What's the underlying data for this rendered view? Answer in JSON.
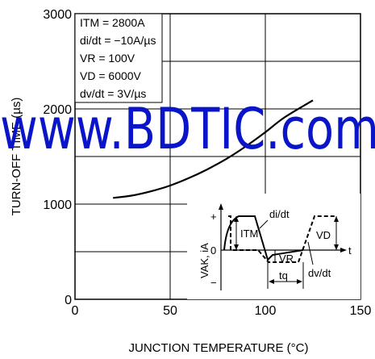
{
  "chart_data": {
    "type": "line",
    "xlabel": "JUNCTION TEMPERATURE  (°C)",
    "ylabel": "TURN-OFF TIME  (µs)",
    "xlim": [
      0,
      150
    ],
    "ylim": [
      0,
      3000
    ],
    "xticks": [
      "0",
      "50",
      "100",
      "150"
    ],
    "yticks": [
      "0",
      "1000",
      "2000",
      "3000"
    ],
    "grid": true,
    "series": [
      {
        "x": [
          20,
          30,
          40,
          50,
          60,
          70,
          80,
          90,
          100,
          110,
          125
        ],
        "y": [
          1065,
          1090,
          1135,
          1195,
          1275,
          1370,
          1480,
          1610,
          1755,
          1910,
          2090
        ]
      }
    ],
    "conditions": [
      "ITM = 2800A",
      "di/dt = −10A/µs",
      "VR = 100V",
      "VD = 6000V",
      "dv/dt = 3V/µs"
    ]
  },
  "inset": {
    "y_label": "VAK, iA",
    "t_label": "t",
    "plus": "+",
    "minus": "−",
    "zero": "0",
    "itm": "ITM",
    "didt": "di/dt",
    "vd": "VD",
    "vr": "VR",
    "tq": "tq",
    "dvdt": "dv/dt"
  },
  "watermark": "www.BDTIC.com"
}
